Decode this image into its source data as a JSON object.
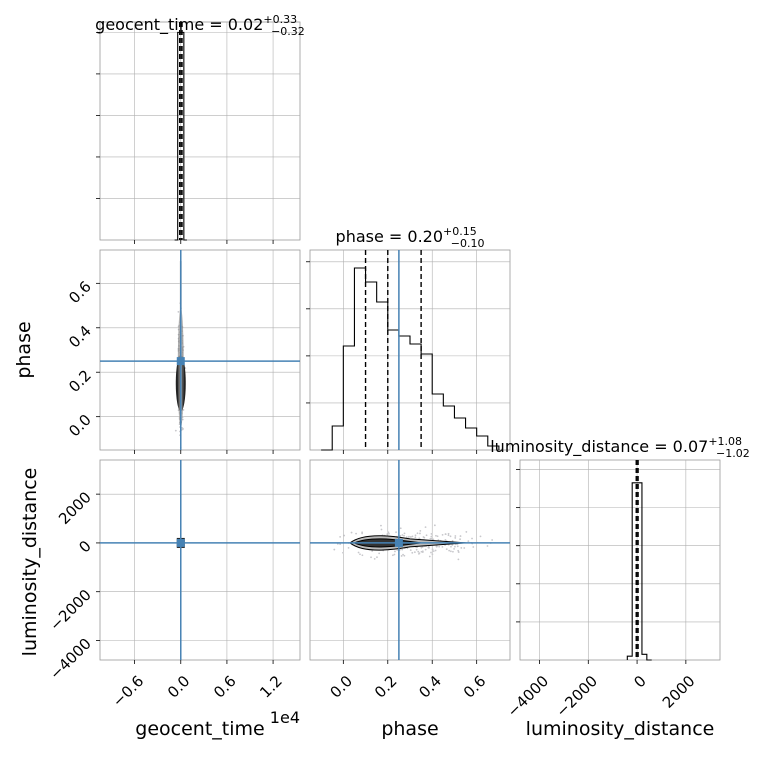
{
  "chart_data": {
    "type": "corner",
    "title": "",
    "parameters": [
      "geocent_time",
      "phase",
      "luminosity_distance"
    ],
    "axis_offset_texts": {
      "geocent_time": "1e4"
    },
    "titles": [
      {
        "param": "geocent_time",
        "text": "geocent_time = 0.02",
        "sup": "+0.33",
        "sub": "−0.32",
        "median": 0.02,
        "plus": 0.33,
        "minus": 0.32
      },
      {
        "param": "phase",
        "text": "phase = 0.20",
        "sup": "+0.15",
        "sub": "−0.10",
        "median": 0.2,
        "plus": 0.15,
        "minus": 0.1
      },
      {
        "param": "luminosity_distance",
        "text": "luminosity_distance = 0.07",
        "sup": "+1.08",
        "sub": "−1.02",
        "median": 0.07,
        "plus": 1.08,
        "minus": 1.02
      }
    ],
    "truths": {
      "geocent_time": 0.0,
      "phase": 0.25,
      "luminosity_distance": 0.0
    },
    "quantile_lines": {
      "geocent_time": [
        -0.3,
        0.02,
        0.35
      ],
      "phase": [
        0.1,
        0.2,
        0.35
      ],
      "luminosity_distance": [
        -0.95,
        0.07,
        1.15
      ]
    },
    "ranges": {
      "geocent_time": [
        -1.05,
        1.55
      ],
      "phase": [
        -0.15,
        0.75
      ],
      "luminosity_distance": [
        -4800,
        3400
      ]
    },
    "ticks": {
      "geocent_time": {
        "values": [
          -0.6,
          0.0,
          0.6,
          1.2
        ],
        "labels": [
          "−0.6",
          "0.0",
          "0.6",
          "1.2"
        ]
      },
      "phase_x": {
        "values": [
          0.0,
          0.2,
          0.4,
          0.6
        ],
        "labels": [
          "0.0",
          "0.2",
          "0.4",
          "0.6"
        ]
      },
      "phase_y": {
        "values": [
          0.0,
          0.2,
          0.4,
          0.6
        ],
        "labels": [
          "0.0",
          "0.2",
          "0.4",
          "0.6"
        ]
      },
      "luminosity_distance_x": {
        "values": [
          -4000,
          -2000,
          0,
          2000
        ],
        "labels": [
          "−4000",
          "−2000",
          "0",
          "2000"
        ]
      },
      "luminosity_distance_y": {
        "values": [
          -4000,
          -2000,
          0,
          2000
        ],
        "labels": [
          "−4000",
          "−2000",
          "0",
          "2000"
        ]
      }
    },
    "histograms": {
      "geocent_time": {
        "bin_edges": [
          -0.08,
          -0.04,
          0.0,
          0.04,
          0.08
        ],
        "counts": [
          0,
          1.0,
          1.0,
          0
        ],
        "ylim": [
          0,
          1.05
        ]
      },
      "phase": {
        "bin_edges": [
          -0.1,
          -0.05,
          0.0,
          0.05,
          0.1,
          0.15,
          0.2,
          0.25,
          0.3,
          0.35,
          0.4,
          0.45,
          0.5,
          0.55,
          0.6,
          0.65,
          0.7
        ],
        "counts": [
          0.0,
          0.12,
          0.52,
          0.91,
          0.84,
          0.74,
          0.6,
          0.57,
          0.53,
          0.48,
          0.28,
          0.22,
          0.16,
          0.11,
          0.07,
          0.02
        ],
        "ylim": [
          0,
          1.0
        ]
      },
      "luminosity_distance": {
        "bin_edges": [
          -400,
          -200,
          0,
          200,
          400,
          600
        ],
        "counts": [
          0.02,
          0.93,
          0.93,
          0.03,
          0.0
        ],
        "ylim": [
          0,
          1.05
        ]
      }
    },
    "scatter": {
      "phase_vs_geocent_time": {
        "center": [
          0.0,
          0.18
        ],
        "spread": [
          0.015,
          0.1
        ]
      },
      "luminosity_distance_vs_geocent_time": {
        "center": [
          0.0,
          0.0
        ],
        "spread": [
          0.01,
          60
        ]
      },
      "luminosity_distance_vs_phase": {
        "center": [
          0.25,
          0.0
        ],
        "spread": [
          0.15,
          120
        ]
      }
    },
    "grid": true,
    "colors": {
      "truth": "#4682b4",
      "hist": "#000000",
      "grid": "#b0b0b0",
      "scatter": "#c8c8cc"
    }
  }
}
